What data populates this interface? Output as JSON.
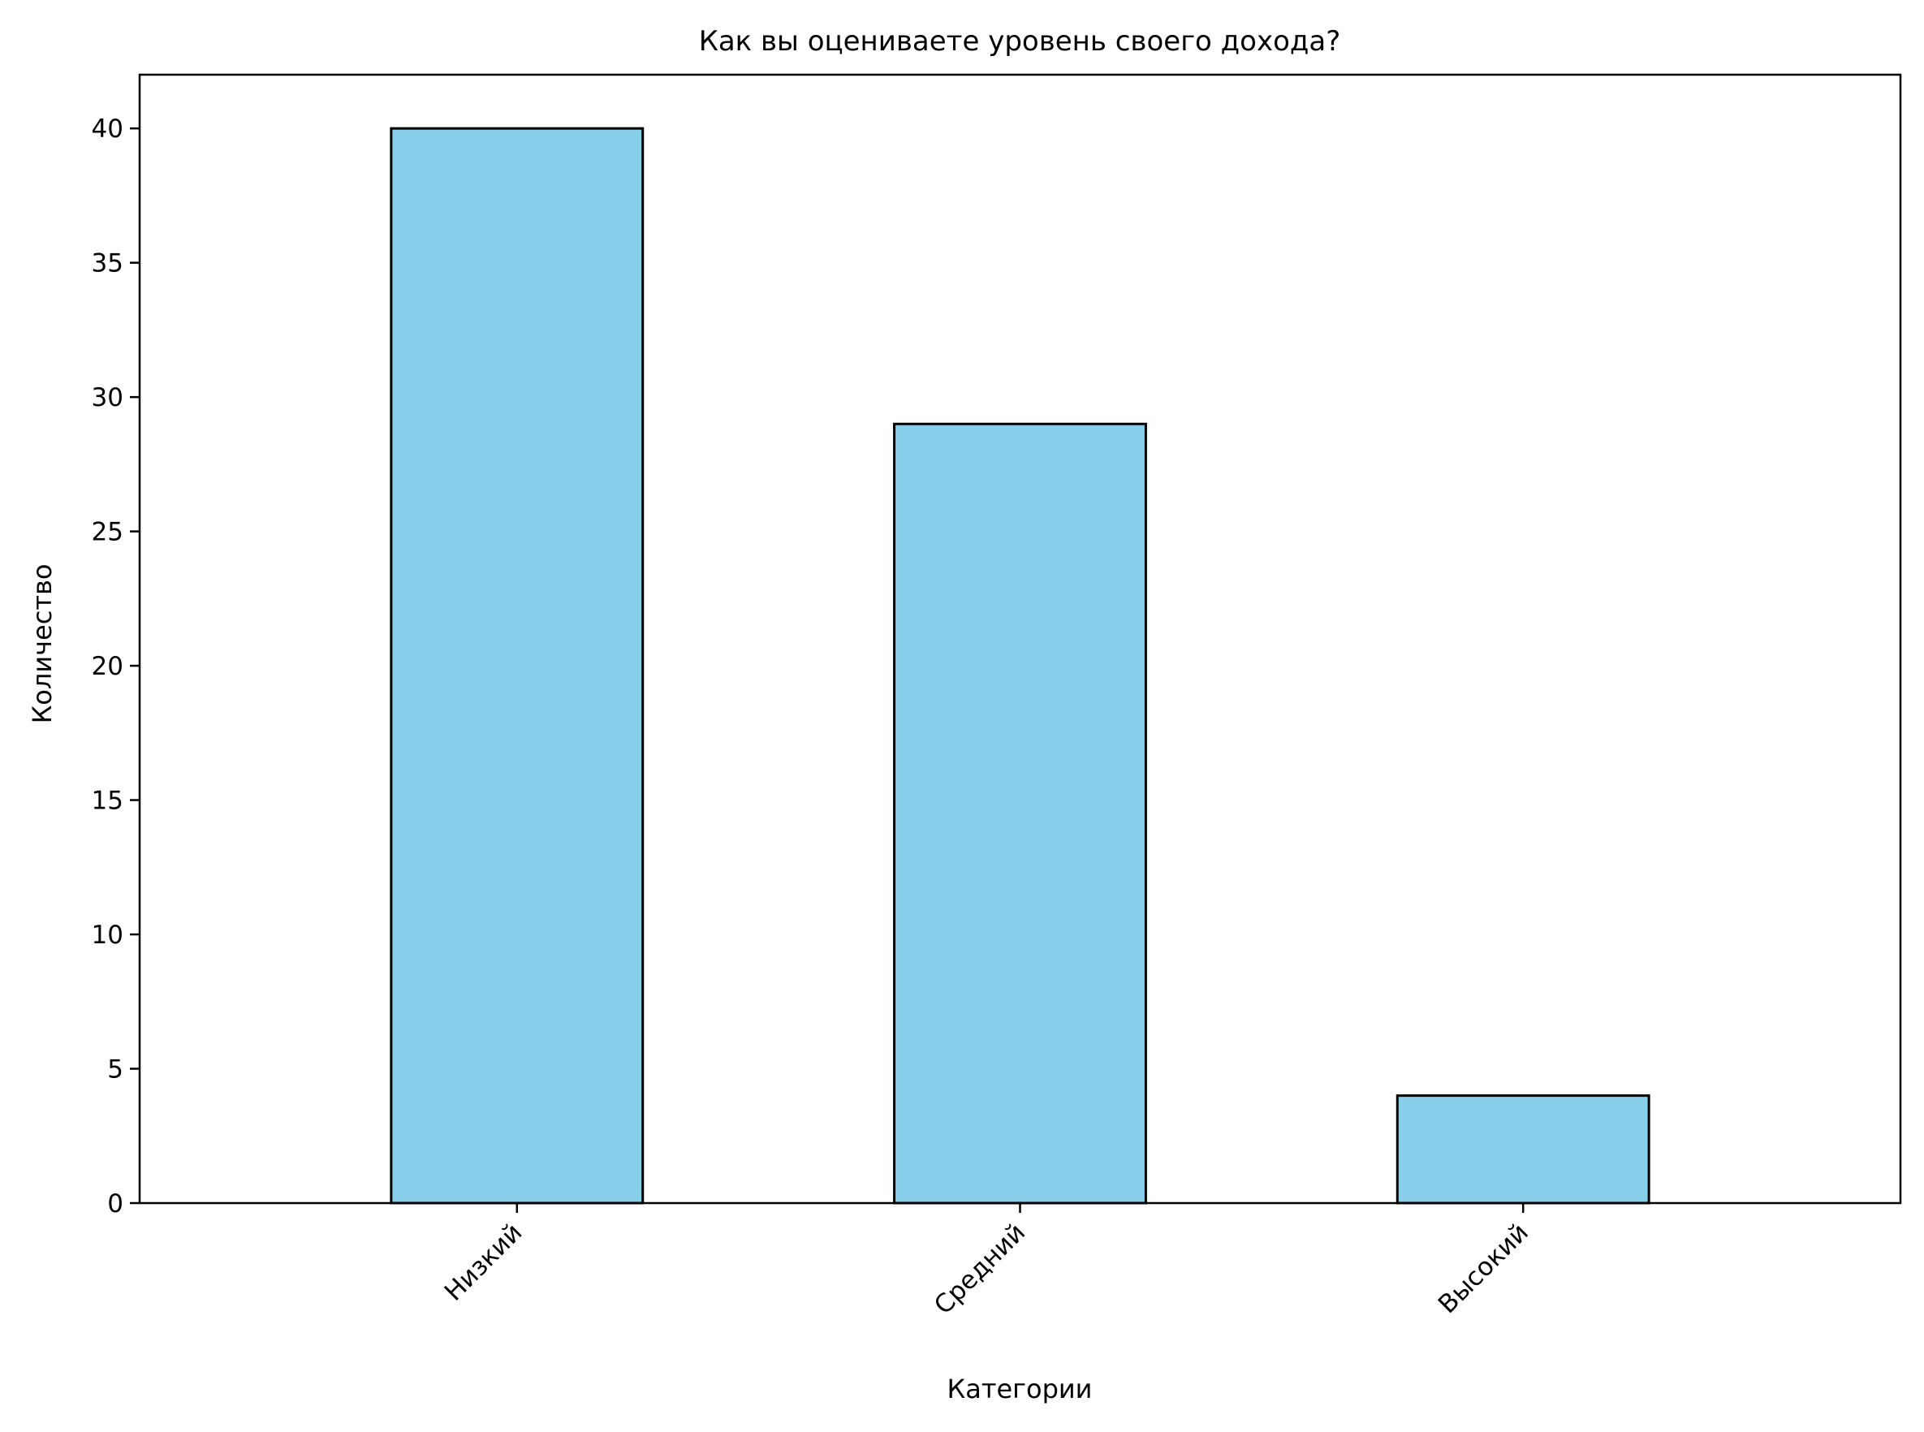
{
  "chart_data": {
    "type": "bar",
    "title": "Как вы оцениваете уровень своего дохода?",
    "xlabel": "Категории",
    "ylabel": "Количество",
    "categories": [
      "Низкий",
      "Средний",
      "Высокий"
    ],
    "values": [
      40,
      29,
      4
    ],
    "ylim": [
      0,
      42
    ],
    "yticks": [
      0,
      5,
      10,
      15,
      20,
      25,
      30,
      35,
      40
    ],
    "grid": false,
    "legend": false,
    "bar_color": "#87CEEB",
    "edge_color": "#000000"
  }
}
